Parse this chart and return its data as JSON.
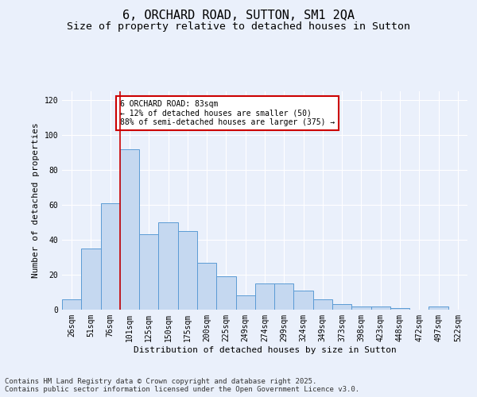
{
  "title": "6, ORCHARD ROAD, SUTTON, SM1 2QA",
  "subtitle": "Size of property relative to detached houses in Sutton",
  "xlabel": "Distribution of detached houses by size in Sutton",
  "ylabel": "Number of detached properties",
  "footnote1": "Contains HM Land Registry data © Crown copyright and database right 2025.",
  "footnote2": "Contains public sector information licensed under the Open Government Licence v3.0.",
  "annotation_title": "6 ORCHARD ROAD: 83sqm",
  "annotation_line1": "← 12% of detached houses are smaller (50)",
  "annotation_line2": "88% of semi-detached houses are larger (375) →",
  "categories": [
    "26sqm",
    "51sqm",
    "76sqm",
    "101sqm",
    "125sqm",
    "150sqm",
    "175sqm",
    "200sqm",
    "225sqm",
    "249sqm",
    "274sqm",
    "299sqm",
    "324sqm",
    "349sqm",
    "373sqm",
    "398sqm",
    "423sqm",
    "448sqm",
    "472sqm",
    "497sqm",
    "522sqm"
  ],
  "values": [
    6,
    35,
    61,
    92,
    43,
    50,
    45,
    27,
    19,
    8,
    15,
    15,
    11,
    6,
    3,
    2,
    2,
    1,
    0,
    2,
    0
  ],
  "bar_color": "#c5d8f0",
  "bar_edge_color": "#5b9bd5",
  "vline_color": "#cc0000",
  "vline_x_index": 2.5,
  "annotation_box_color": "#cc0000",
  "background_color": "#eaf0fb",
  "ylim": [
    0,
    125
  ],
  "yticks": [
    0,
    20,
    40,
    60,
    80,
    100,
    120
  ],
  "grid_color": "#ffffff",
  "title_fontsize": 11,
  "subtitle_fontsize": 9.5,
  "axis_label_fontsize": 8,
  "tick_fontsize": 7,
  "annotation_fontsize": 7,
  "footnote_fontsize": 6.5
}
